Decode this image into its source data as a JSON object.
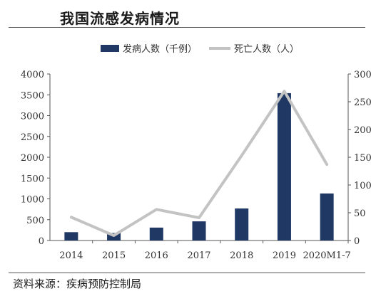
{
  "header": {
    "title": "我国流感发病情况"
  },
  "footer": {
    "source": "资料来源：疾病预防控制局"
  },
  "chart_data": {
    "type": "bar",
    "title": "我国流感发病情况",
    "categories": [
      "2014",
      "2015",
      "2016",
      "2017",
      "2018",
      "2019",
      "2020M1-7"
    ],
    "series": [
      {
        "name": "发病人数（千例）",
        "type": "bar",
        "axis": "left",
        "color": "#1f3864",
        "values": [
          200,
          180,
          310,
          460,
          770,
          3540,
          1130
        ]
      },
      {
        "name": "死亡人数（人）",
        "type": "line",
        "axis": "right",
        "color": "#c3c3c3",
        "values": [
          42,
          9,
          56,
          41,
          153,
          269,
          137
        ]
      }
    ],
    "left_axis": {
      "min": 0,
      "max": 4000,
      "ticks": [
        0,
        500,
        1000,
        1500,
        2000,
        2500,
        3000,
        3500,
        4000
      ]
    },
    "right_axis": {
      "min": 0,
      "max": 300,
      "ticks": [
        0,
        50,
        100,
        150,
        200,
        250,
        300
      ]
    },
    "grid": false,
    "legend_position": "top"
  }
}
